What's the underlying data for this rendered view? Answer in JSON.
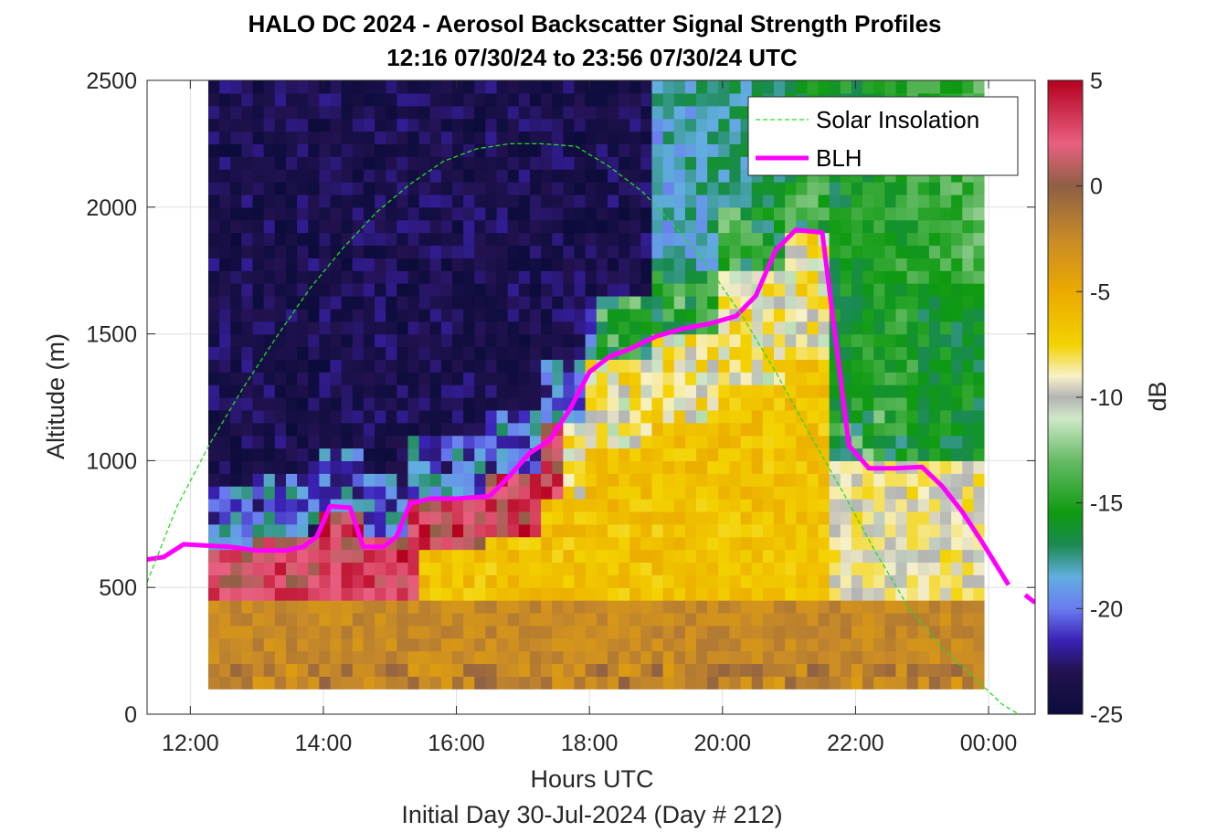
{
  "chart_data": {
    "type": "heatmap",
    "title": "HALO DC 2024 - Aerosol Backscatter Signal Strength Profiles",
    "subtitle": "12:16 07/30/24 to 23:56 07/30/24  UTC",
    "xlabel": "Hours UTC",
    "footer": "Initial Day 30-Jul-2024 (Day # 212)",
    "ylabel": "Altitude (m)",
    "colorbar_label": "dB",
    "xlim": [
      11.35,
      24.7
    ],
    "ylim": [
      0,
      2500
    ],
    "x_ticks": [
      12,
      14,
      16,
      18,
      20,
      22,
      24
    ],
    "x_tick_labels": [
      "12:00",
      "14:00",
      "16:00",
      "18:00",
      "20:00",
      "22:00",
      "00:00"
    ],
    "y_ticks": [
      0,
      500,
      1000,
      1500,
      2000,
      2500
    ],
    "y_tick_labels": [
      "0",
      "500",
      "1000",
      "1500",
      "2000",
      "2500"
    ],
    "colorbar_ticks": [
      5,
      0,
      -5,
      -10,
      -15,
      -20,
      -25
    ],
    "colorbar_tick_labels": [
      "5",
      "0",
      "-5",
      "-10",
      "-15",
      "-20",
      "-25"
    ],
    "clim": [
      -25,
      5
    ],
    "grid": true,
    "legend_position": "top-right",
    "legend": [
      {
        "label": "Solar Insolation",
        "style": "dashed",
        "color": "#22dd22"
      },
      {
        "label": "BLH",
        "style": "solid",
        "color": "#ff00ff"
      }
    ],
    "heatmap": {
      "time_start": 12.27,
      "time_end": 23.93,
      "alt_start": 100,
      "alt_end": 2500,
      "segments": [
        {
          "t0": 12.27,
          "t1": 12.9,
          "blh": 650,
          "top": 2500
        },
        {
          "t0": 12.9,
          "t1": 13.9,
          "blh": 700,
          "top": 2500
        },
        {
          "t0": 13.9,
          "t1": 14.6,
          "blh": 820,
          "top": 2500
        },
        {
          "t0": 14.6,
          "t1": 15.2,
          "blh": 680,
          "top": 2500
        },
        {
          "t0": 15.2,
          "t1": 16.5,
          "blh": 850,
          "top": 2500
        },
        {
          "t0": 16.5,
          "t1": 17.3,
          "blh": 950,
          "top": 2500
        },
        {
          "t0": 17.3,
          "t1": 18.0,
          "blh": 1150,
          "top": 2500
        },
        {
          "t0": 18.0,
          "t1": 19.0,
          "blh": 1400,
          "top": 2500
        },
        {
          "t0": 19.0,
          "t1": 20.0,
          "blh": 1520,
          "top": 2500
        },
        {
          "t0": 20.0,
          "t1": 21.0,
          "blh": 1750,
          "top": 2500
        },
        {
          "t0": 21.0,
          "t1": 21.6,
          "blh": 1900,
          "top": 2500
        },
        {
          "t0": 21.6,
          "t1": 23.0,
          "blh": 1000,
          "top": 2500
        },
        {
          "t0": 23.0,
          "t1": 23.93,
          "blh": 750,
          "top": 2500
        }
      ]
    },
    "series": [
      {
        "name": "BLH",
        "color": "#ff00ff",
        "segments": [
          {
            "x": [
              11.35,
              11.6,
              11.9,
              12.6,
              13.0,
              13.4,
              13.7,
              13.9,
              14.1,
              14.4,
              14.6,
              14.9,
              15.1,
              15.3,
              15.6,
              16.0,
              16.5,
              16.8,
              17.1,
              17.4,
              17.7,
              18.0,
              18.3,
              18.6,
              19.0,
              19.4,
              19.8,
              20.2,
              20.5,
              20.8,
              21.1,
              21.5,
              21.9,
              22.2,
              22.6,
              23.0,
              23.3,
              23.6,
              23.9,
              24.3
            ],
            "y": [
              610,
              620,
              670,
              660,
              645,
              645,
              660,
              700,
              820,
              815,
              660,
              660,
              700,
              830,
              850,
              850,
              860,
              940,
              1030,
              1080,
              1200,
              1350,
              1410,
              1440,
              1490,
              1520,
              1540,
              1570,
              1650,
              1830,
              1910,
              1900,
              1060,
              970,
              970,
              975,
              900,
              800,
              680,
              510
            ]
          },
          {
            "x": [
              24.55,
              24.7
            ],
            "y": [
              470,
              440
            ]
          }
        ]
      },
      {
        "name": "Solar Insolation",
        "color": "#22dd22",
        "x": [
          11.35,
          11.8,
          12.3,
          12.8,
          13.3,
          13.8,
          14.3,
          14.8,
          15.3,
          15.8,
          16.3,
          16.8,
          17.3,
          17.8,
          18.3,
          18.8,
          19.3,
          19.8,
          20.3,
          20.8,
          21.3,
          21.8,
          22.3,
          22.8,
          23.3,
          23.8,
          24.2,
          24.45,
          24.7
        ],
        "y": [
          520,
          820,
          1070,
          1290,
          1490,
          1680,
          1840,
          1980,
          2090,
          2180,
          2230,
          2250,
          2250,
          2240,
          2160,
          2060,
          1920,
          1760,
          1570,
          1350,
          1110,
          880,
          640,
          420,
          260,
          140,
          40,
          0,
          0
        ]
      }
    ]
  }
}
